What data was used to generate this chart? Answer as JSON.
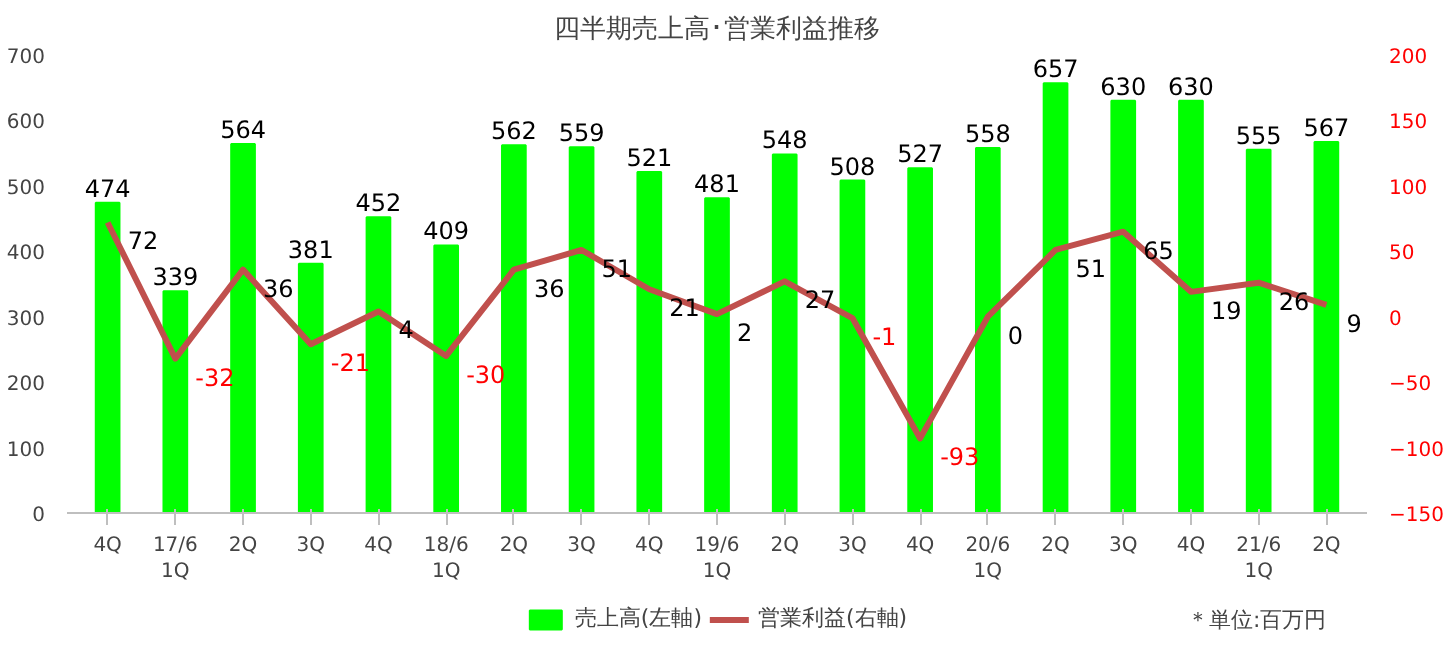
{
  "chart_data": {
    "type": "bar",
    "title": "四半期売上高･営業利益推移",
    "categories": [
      "4Q",
      "17/6\n1Q",
      "2Q",
      "3Q",
      "4Q",
      "18/6\n1Q",
      "2Q",
      "3Q",
      "4Q",
      "19/6\n1Q",
      "2Q",
      "3Q",
      "4Q",
      "20/6\n1Q",
      "2Q",
      "3Q",
      "4Q",
      "21/6\n1Q",
      "2Q"
    ],
    "series": [
      {
        "name": "売上高(左軸)",
        "color": "#00ff00",
        "values": [
          474,
          339,
          564,
          381,
          452,
          409,
          562,
          559,
          521,
          481,
          548,
          508,
          527,
          558,
          657,
          630,
          630,
          555,
          567
        ]
      },
      {
        "name": "営業利益(右軸)",
        "type": "line",
        "axis": "y2",
        "color": "#c0504d",
        "values": [
          72,
          -32,
          36,
          -21,
          4,
          -30,
          36,
          51,
          21,
          2,
          27,
          -1,
          -93,
          0,
          51,
          65,
          19,
          26,
          9
        ]
      }
    ],
    "ylim": [
      0,
      700
    ],
    "yticks": [
      0,
      100,
      200,
      300,
      400,
      500,
      600,
      700
    ],
    "y2lim": [
      -150,
      200
    ],
    "y2ticks": [
      -150,
      -100,
      -50,
      0,
      50,
      100,
      150,
      200
    ],
    "data_labels": true,
    "legend": "bottom",
    "grid": false,
    "annotations": [
      "＊単位:百万円"
    ]
  }
}
